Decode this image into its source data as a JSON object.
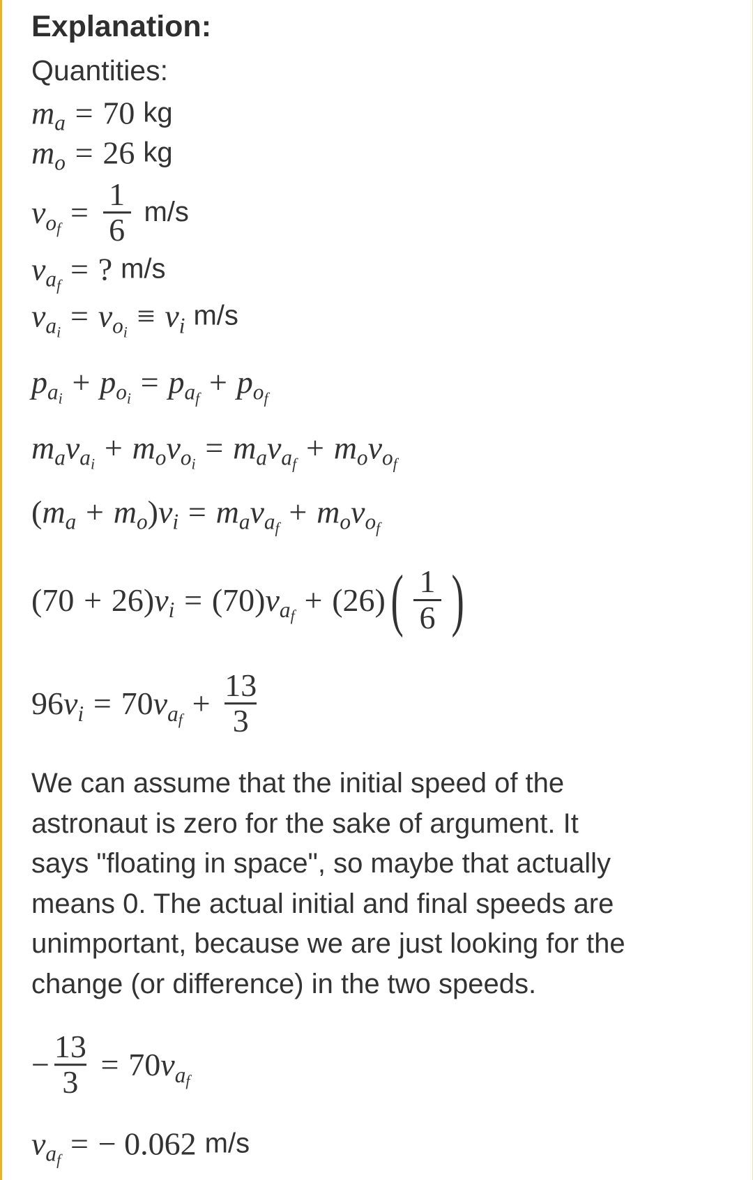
{
  "colors": {
    "border": "#e6b524",
    "text": "#333333"
  },
  "title": "Explanation:",
  "subtitle": "Quantities:",
  "equations": [
    [
      {
        "k": "var",
        "b": "m",
        "s": "a"
      },
      {
        "k": "op",
        "t": "="
      },
      {
        "k": "num",
        "t": "70"
      },
      {
        "k": "unit",
        "t": "kg"
      }
    ],
    [
      {
        "k": "var",
        "b": "m",
        "s": "o"
      },
      {
        "k": "op",
        "t": "="
      },
      {
        "k": "num",
        "t": "26"
      },
      {
        "k": "unit",
        "t": "kg"
      }
    ],
    [
      {
        "k": "var",
        "b": "v",
        "s": "o",
        "ss": "f"
      },
      {
        "k": "op",
        "t": "="
      },
      {
        "k": "frac",
        "n": "1",
        "d": "6"
      },
      {
        "k": "unit",
        "t": "m/s"
      }
    ],
    [
      {
        "k": "var",
        "b": "v",
        "s": "a",
        "ss": "f"
      },
      {
        "k": "op",
        "t": "="
      },
      {
        "k": "num",
        "t": "?"
      },
      {
        "k": "unit",
        "t": "m/s"
      }
    ],
    [
      {
        "k": "var",
        "b": "v",
        "s": "a",
        "ss": "i"
      },
      {
        "k": "op",
        "t": "="
      },
      {
        "k": "var",
        "b": "v",
        "s": "o",
        "ss": "i"
      },
      {
        "k": "op",
        "t": "≡"
      },
      {
        "k": "var",
        "b": "v",
        "s": "i"
      },
      {
        "k": "unit",
        "t": "m/s"
      }
    ],
    [
      {
        "k": "var",
        "b": "p",
        "s": "a",
        "ss": "i"
      },
      {
        "k": "op",
        "t": "+"
      },
      {
        "k": "var",
        "b": "p",
        "s": "o",
        "ss": "i"
      },
      {
        "k": "op",
        "t": "="
      },
      {
        "k": "var",
        "b": "p",
        "s": "a",
        "ss": "f"
      },
      {
        "k": "op",
        "t": "+"
      },
      {
        "k": "var",
        "b": "p",
        "s": "o",
        "ss": "f"
      }
    ],
    [
      {
        "k": "var",
        "b": "m",
        "s": "a"
      },
      {
        "k": "var",
        "b": "v",
        "s": "a",
        "ss": "i"
      },
      {
        "k": "op",
        "t": "+"
      },
      {
        "k": "var",
        "b": "m",
        "s": "o"
      },
      {
        "k": "var",
        "b": "v",
        "s": "o",
        "ss": "i"
      },
      {
        "k": "op",
        "t": "="
      },
      {
        "k": "var",
        "b": "m",
        "s": "a"
      },
      {
        "k": "var",
        "b": "v",
        "s": "a",
        "ss": "f"
      },
      {
        "k": "op",
        "t": "+"
      },
      {
        "k": "var",
        "b": "m",
        "s": "o"
      },
      {
        "k": "var",
        "b": "v",
        "s": "o",
        "ss": "f"
      }
    ],
    [
      {
        "k": "num",
        "t": "("
      },
      {
        "k": "var",
        "b": "m",
        "s": "a"
      },
      {
        "k": "op",
        "t": "+"
      },
      {
        "k": "var",
        "b": "m",
        "s": "o"
      },
      {
        "k": "num",
        "t": ")"
      },
      {
        "k": "var",
        "b": "v",
        "s": "i"
      },
      {
        "k": "op",
        "t": "="
      },
      {
        "k": "var",
        "b": "m",
        "s": "a"
      },
      {
        "k": "var",
        "b": "v",
        "s": "a",
        "ss": "f"
      },
      {
        "k": "op",
        "t": "+"
      },
      {
        "k": "var",
        "b": "m",
        "s": "o"
      },
      {
        "k": "var",
        "b": "v",
        "s": "o",
        "ss": "f"
      }
    ],
    [
      {
        "k": "num",
        "t": "(70"
      },
      {
        "k": "op",
        "t": "+"
      },
      {
        "k": "num",
        "t": "26)"
      },
      {
        "k": "var",
        "b": "v",
        "s": "i"
      },
      {
        "k": "op",
        "t": "="
      },
      {
        "k": "num",
        "t": "(70)"
      },
      {
        "k": "var",
        "b": "v",
        "s": "a",
        "ss": "f"
      },
      {
        "k": "op",
        "t": "+"
      },
      {
        "k": "num",
        "t": "(26)"
      },
      {
        "k": "pfrac",
        "n": "1",
        "d": "6"
      }
    ],
    [
      {
        "k": "num",
        "t": "96"
      },
      {
        "k": "var",
        "b": "v",
        "s": "i"
      },
      {
        "k": "op",
        "t": "="
      },
      {
        "k": "num",
        "t": "70"
      },
      {
        "k": "var",
        "b": "v",
        "s": "a",
        "ss": "f"
      },
      {
        "k": "op",
        "t": "+"
      },
      {
        "k": "frac",
        "n": "13",
        "d": "3"
      }
    ],
    [
      {
        "k": "num",
        "t": "−"
      },
      {
        "k": "frac",
        "n": "13",
        "d": "3"
      },
      {
        "k": "op",
        "t": "="
      },
      {
        "k": "num",
        "t": "70"
      },
      {
        "k": "var",
        "b": "v",
        "s": "a",
        "ss": "f"
      }
    ],
    [
      {
        "k": "var",
        "b": "v",
        "s": "a",
        "ss": "f"
      },
      {
        "k": "op",
        "t": "="
      },
      {
        "k": "num",
        "t": "− 0.062"
      },
      {
        "k": "unit",
        "t": "m/s"
      }
    ]
  ],
  "paragraph": [
    "We can assume that the initial speed of the",
    "astronaut is zero for the sake of argument. It",
    "says \"floating in space\", so maybe that actually",
    "means 0. The actual initial and final speeds are",
    "unimportant, because we are just looking for the",
    "change (or difference) in the two speeds."
  ]
}
